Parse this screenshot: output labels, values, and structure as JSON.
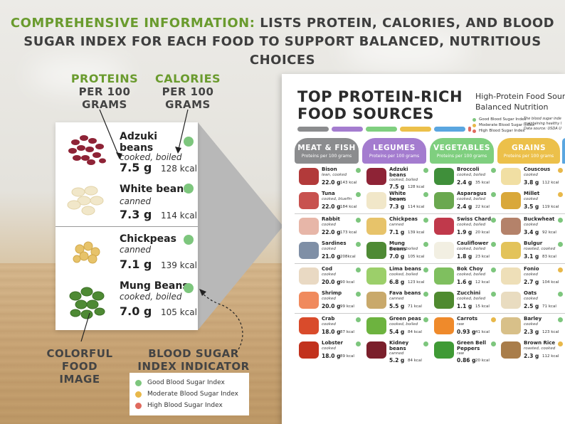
{
  "headline": {
    "part1": "COMPREHENSIVE INFORMATION:",
    "part2": " LISTS PROTEIN, CALORIES, AND BLOOD",
    "line2": "SUGAR INDEX FOR EACH FOOD TO SUPPORT BALANCED, NUTRITIOUS CHOICES"
  },
  "callouts": {
    "proteins": {
      "l1": "PROTEINS",
      "l2": "PER 100",
      "l3": "GRAMS"
    },
    "calories": {
      "l1": "CALORIES",
      "l2": "PER 100",
      "l3": "GRAMS"
    },
    "image": {
      "l1": "COLORFUL",
      "l2": "FOOD",
      "l3": "IMAGE"
    },
    "index": {
      "l1": "BLOOD SUGAR",
      "l2": "INDEX INDICATOR"
    }
  },
  "card_items": [
    {
      "name": "Adzuki",
      "name2": "beans",
      "prep": "cooked, boiled",
      "protein": "7.5 g",
      "kcal": "128 kcal"
    },
    {
      "name": "White beans",
      "name2": "",
      "prep": "canned",
      "protein": "7.3 g",
      "kcal": "114 kcal"
    },
    {
      "name": "Chickpeas",
      "name2": "",
      "prep": "canned",
      "protein": "7.1 g",
      "kcal": "139 kcal"
    },
    {
      "name": "Mung Beans",
      "name2": "",
      "prep": "cooked, boiled",
      "protein": "7.0 g",
      "kcal": "105 kcal"
    }
  ],
  "legend": [
    {
      "label": "Good Blood Sugar Index",
      "color": "#7dc67d"
    },
    {
      "label": "Moderate Blood Sugar Index",
      "color": "#e8b84a"
    },
    {
      "label": "High Blood Sugar Index",
      "color": "#e06a5e"
    }
  ],
  "poster": {
    "title1": "TOP PROTEIN-RICH",
    "title2": "FOOD SOURCES",
    "sub1": "High-Protein Food Sourc",
    "sub2": "Balanced Nutrition",
    "legend": [
      {
        "label": "Good Blood Sugar Index",
        "color": "#7dc67d"
      },
      {
        "label": "Moderate Blood Sugar Index",
        "color": "#e8b84a"
      },
      {
        "label": "High Blood Sugar Index",
        "color": "#e06a5e"
      }
    ],
    "note1": "The blood sugar inde",
    "note2": "maintaining healthy l",
    "note3": "Data source: USDA U",
    "strip_colors": [
      "#8b8c8e",
      "#a47ccf",
      "#7fcf7f",
      "#ecc04a",
      "#5aa6e0",
      "#e06a5e"
    ],
    "categories": [
      {
        "title": "MEAT & FISH",
        "sub": "Proteins per 100 grams",
        "color": "#8b8c8e"
      },
      {
        "title": "LEGUMES",
        "sub": "Proteins per 100 grams",
        "color": "#a47ccf"
      },
      {
        "title": "VEGETABLES",
        "sub": "Proteins per 100 grams",
        "color": "#7fcf7f"
      },
      {
        "title": "GRAINS",
        "sub": "Proteins per 100 grams",
        "color": "#ecc04a"
      }
    ],
    "columns": [
      [
        {
          "name": "Bison",
          "prep": "lean, cooked",
          "g": "22.0 g",
          "k": "143 kcal",
          "dot": "#7dc67d",
          "img": "#b23a3a"
        },
        {
          "name": "Tuna",
          "prep": "cooked, bluefin",
          "g": "22.0 g",
          "k": "184 kcal",
          "dot": "#7dc67d",
          "img": "#c8524f"
        },
        {
          "name": "Rabbit",
          "prep": "cooked",
          "g": "22.0 g",
          "k": "173 kcal",
          "dot": "#7dc67d",
          "img": "#e7b6a8"
        },
        {
          "name": "Sardines",
          "prep": "cooked",
          "g": "21.0 g",
          "k": "208kcal",
          "dot": "#7dc67d",
          "img": "#7f8fa6"
        },
        {
          "name": "Cod",
          "prep": "cooked",
          "g": "20.0 g",
          "k": "90 kcal",
          "dot": "#7dc67d",
          "img": "#e9d9c3"
        },
        {
          "name": "Shrimp",
          "prep": "cooked",
          "g": "20.0 g",
          "k": "99 kcal",
          "dot": "#7dc67d",
          "img": "#f08a5d"
        },
        {
          "name": "Crab",
          "prep": "cooked",
          "g": "18.0 g",
          "k": "87 kcal",
          "dot": "#7dc67d",
          "img": "#d94b2b"
        },
        {
          "name": "Lobster",
          "prep": "cooked",
          "g": "18.0 g",
          "k": "89 kcal",
          "dot": "#7dc67d",
          "img": "#c2321d"
        }
      ],
      [
        {
          "name": "Adzuki beans",
          "prep": "cooked, boiled",
          "g": "7.5 g",
          "k": "128 kcal",
          "dot": "#7dc67d",
          "img": "#8e2336"
        },
        {
          "name": "White beans",
          "prep": "canned",
          "g": "7.3 g",
          "k": "114 kcal",
          "dot": "#7dc67d",
          "img": "#f1e7c9"
        },
        {
          "name": "Chickpeas",
          "prep": "canned",
          "g": "7.1 g",
          "k": "139 kcal",
          "dot": "#7dc67d",
          "img": "#e7c36a"
        },
        {
          "name": "Mung Beans",
          "prep": "cooked, boiled",
          "g": "7.0 g",
          "k": "105 kcal",
          "dot": "#7dc67d",
          "img": "#4e8a34"
        },
        {
          "name": "Lima beans",
          "prep": "cooked, boiled",
          "g": "6.8 g",
          "k": "123 kcal",
          "dot": "#7dc67d",
          "img": "#9ccf6a"
        },
        {
          "name": "Fava beans",
          "prep": "canned",
          "g": "5.5 g",
          "k": "71 kcal",
          "dot": "#7dc67d",
          "img": "#c9a96b"
        },
        {
          "name": "Green peas",
          "prep": "cooked, boiled",
          "g": "5.4 g",
          "k": "84 kcal",
          "dot": "#7dc67d",
          "img": "#6db33f"
        },
        {
          "name": "Kidney beans",
          "prep": "canned",
          "g": "5.2 g",
          "k": "84 kcal",
          "dot": "#7dc67d",
          "img": "#7a1f2b"
        }
      ],
      [
        {
          "name": "Broccoli",
          "prep": "cooked, boiled",
          "g": "2.4 g",
          "k": "35 kcal",
          "dot": "#7dc67d",
          "img": "#3f8f3a"
        },
        {
          "name": "Asparagus",
          "prep": "cooked, boiled",
          "g": "2.4 g",
          "k": "22 kcal",
          "dot": "#7dc67d",
          "img": "#6aa84f"
        },
        {
          "name": "Swiss Chard",
          "prep": "cooked, boiled",
          "g": "1.9 g",
          "k": "20 kcal",
          "dot": "#7dc67d",
          "img": "#c0394b"
        },
        {
          "name": "Cauliflower",
          "prep": "cooked, boiled",
          "g": "1.8 g",
          "k": "23 kcal",
          "dot": "#7dc67d",
          "img": "#f2efe2"
        },
        {
          "name": "Bok Choy",
          "prep": "cooked, boiled",
          "g": "1.6 g",
          "k": "12 kcal",
          "dot": "#7dc67d",
          "img": "#7fbf5f"
        },
        {
          "name": "Zucchini",
          "prep": "cooked, boiled",
          "g": "1.1 g",
          "k": "15 kcal",
          "dot": "#7dc67d",
          "img": "#4f8a2f"
        },
        {
          "name": "Carrots",
          "prep": "raw",
          "g": "0.93 g",
          "k": "41 kcal",
          "dot": "#e8b84a",
          "img": "#ef8a2b"
        },
        {
          "name": "Green Bell Peppers",
          "prep": "raw",
          "g": "0.86 g",
          "k": "20 kcal",
          "dot": "#7dc67d",
          "img": "#3f9a35"
        }
      ],
      [
        {
          "name": "Couscous",
          "prep": "cooked",
          "g": "3.8 g",
          "k": "112 kcal",
          "dot": "#e8b84a",
          "img": "#f1dfa3"
        },
        {
          "name": "Millet",
          "prep": "cooked",
          "g": "3.5 g",
          "k": "119 kcal",
          "dot": "#e8b84a",
          "img": "#d9a83a"
        },
        {
          "name": "Buckwheat",
          "prep": "cooked",
          "g": "3.4 g",
          "k": "92 kcal",
          "dot": "#7dc67d",
          "img": "#b4826a"
        },
        {
          "name": "Bulgur",
          "prep": "roasted, cooked",
          "g": "3.1 g",
          "k": "83 kcal",
          "dot": "#7dc67d",
          "img": "#e3c35a"
        },
        {
          "name": "Fonio",
          "prep": "cooked",
          "g": "2.7 g",
          "k": "104 kcal",
          "dot": "#e8b84a",
          "img": "#eedfb8"
        },
        {
          "name": "Oats",
          "prep": "cooked",
          "g": "2.5 g",
          "k": "71 kcal",
          "dot": "#7dc67d",
          "img": "#e9dcc0"
        },
        {
          "name": "Barley",
          "prep": "cooked",
          "g": "2.3 g",
          "k": "123 kcal",
          "dot": "#7dc67d",
          "img": "#d8c089"
        },
        {
          "name": "Brown Rice",
          "prep": "roasted, cooked",
          "g": "2.3 g",
          "k": "112 kcal",
          "dot": "#e8b84a",
          "img": "#a97d4a"
        }
      ]
    ]
  }
}
